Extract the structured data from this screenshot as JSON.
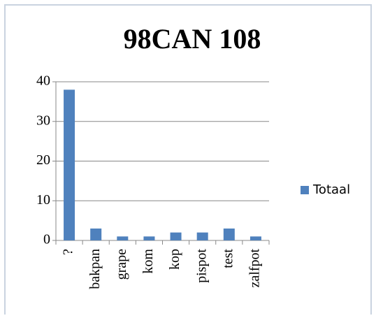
{
  "chart_data": {
    "type": "bar",
    "title": "98CAN 108",
    "categories": [
      "?",
      "bakpan",
      "grape",
      "kom",
      "kop",
      "pispot",
      "test",
      "zalfpot"
    ],
    "series": [
      {
        "name": "Totaal",
        "color": "#4f81bd",
        "values": [
          38,
          3,
          1,
          1,
          2,
          2,
          3,
          1
        ]
      }
    ],
    "ylim": [
      0,
      40
    ],
    "yticks": [
      0,
      10,
      20,
      30,
      40
    ],
    "grid": true,
    "legend": "right"
  }
}
